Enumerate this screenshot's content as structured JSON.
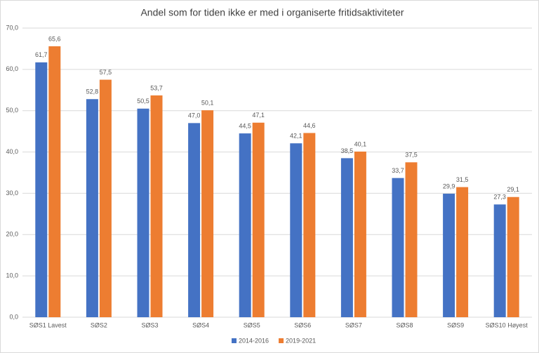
{
  "chart_data": {
    "type": "bar",
    "title": "Andel som for tiden ikke er med i organiserte fritidsaktiviteter",
    "categories": [
      "SØS1 Lavest",
      "SØS2",
      "SØS3",
      "SØS4",
      "SØS5",
      "SØS6",
      "SØS7",
      "SØS8",
      "SØS9",
      "SØS10 Høyest"
    ],
    "series": [
      {
        "name": "2014-2016",
        "color": "#4472c4",
        "values": [
          61.7,
          52.8,
          50.5,
          47.0,
          44.5,
          42.1,
          38.5,
          33.7,
          29.9,
          27.3
        ],
        "value_labels": [
          "61,7",
          "52,8",
          "50,5",
          "47,0",
          "44,5",
          "42,1",
          "38,5",
          "33,7",
          "29,9",
          "27,3"
        ]
      },
      {
        "name": "2019-2021",
        "color": "#ed7d31",
        "values": [
          65.6,
          57.5,
          53.7,
          50.1,
          47.1,
          44.6,
          40.1,
          37.5,
          31.5,
          29.1
        ],
        "value_labels": [
          "65,6",
          "57,5",
          "53,7",
          "50,1",
          "47,1",
          "44,6",
          "40,1",
          "37,5",
          "31,5",
          "29,1"
        ]
      }
    ],
    "ylim": [
      0,
      70
    ],
    "yticks": [
      {
        "value": 0,
        "label": "0,0"
      },
      {
        "value": 10,
        "label": "10,0"
      },
      {
        "value": 20,
        "label": "20,0"
      },
      {
        "value": 30,
        "label": "30,0"
      },
      {
        "value": 40,
        "label": "40,0"
      },
      {
        "value": 50,
        "label": "50,0"
      },
      {
        "value": 60,
        "label": "60,0"
      },
      {
        "value": 70,
        "label": "70,0"
      }
    ],
    "grid": true,
    "legend": "bottom"
  }
}
